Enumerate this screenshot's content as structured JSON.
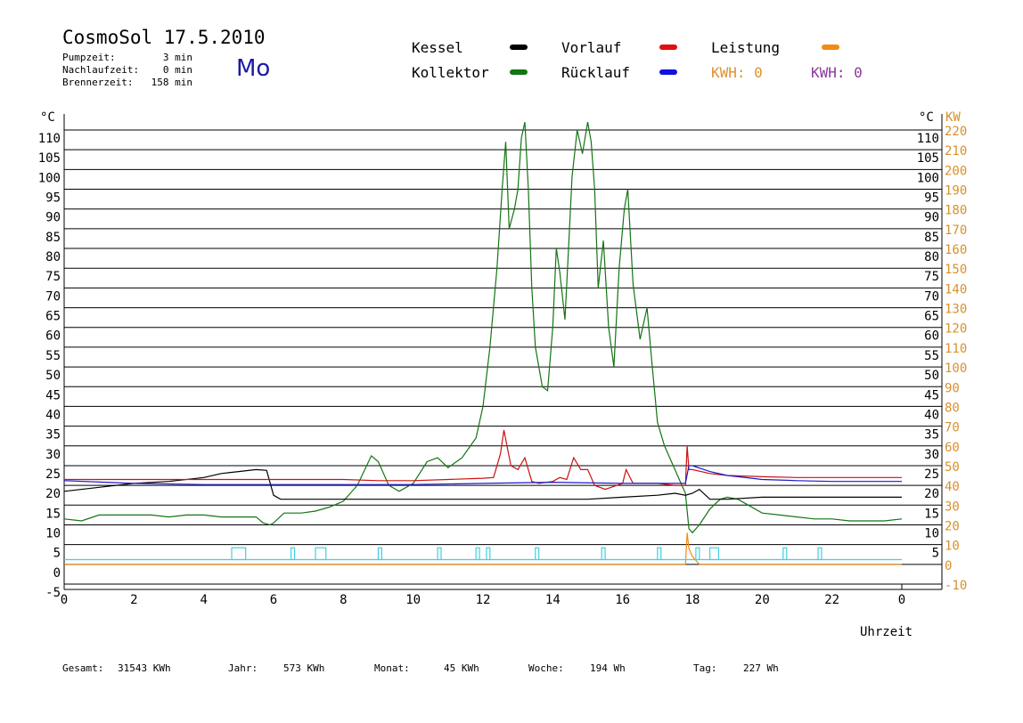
{
  "header": {
    "title": "CosmoSol 17.5.2010",
    "pumpzeit_label": "Pumpzeit:",
    "pumpzeit_value": "3 min",
    "nachlaufzeit_label": "Nachlaufzeit:",
    "nachlaufzeit_value": "0 min",
    "brennerzeit_label": "Brennerzeit:",
    "brennerzeit_value": "158 min",
    "day": "Mo"
  },
  "legend": {
    "kessel": "Kessel",
    "kollektor": "Kollektor",
    "vorlauf": "Vorlauf",
    "ruecklauf": "Rücklauf",
    "leistung": "Leistung",
    "kwh1": "KWH: 0",
    "kwh2": "KWH: 0"
  },
  "colors": {
    "kessel": "#000000",
    "kollektor": "#137513",
    "vorlauf": "#cc1111",
    "ruecklauf": "#1a1acc",
    "leistung": "#f08c14",
    "kwh1": "#e0922e",
    "kwh2": "#8a3a9a",
    "pump": "#40d0e0",
    "right_axis": "#d8902c"
  },
  "axes": {
    "left_unit": "°C",
    "right_unit": "°C",
    "right_unit2": "KW",
    "xlabel": "Uhrzeit"
  },
  "footer": {
    "gesamt_label": "Gesamt:",
    "gesamt_value": "31543 KWh",
    "jahr_label": "Jahr:",
    "jahr_value": "573 KWh",
    "monat_label": "Monat:",
    "monat_value": "45 KWh",
    "woche_label": "Woche:",
    "woche_value": "194 Wh",
    "tag_label": "Tag:",
    "tag_value": "227 Wh"
  },
  "chart_data": {
    "type": "line",
    "title": "CosmoSol 17.5.2010",
    "xlabel": "Uhrzeit",
    "ylabel": "°C",
    "xlim": [
      0,
      24
    ],
    "ylim": [
      -5,
      110
    ],
    "y2lim": [
      -10,
      220
    ],
    "x_ticks": [
      "0",
      "2",
      "4",
      "6",
      "8",
      "10",
      "12",
      "14",
      "16",
      "18",
      "20",
      "22",
      "0"
    ],
    "y_ticks_left": [
      110,
      105,
      100,
      95,
      90,
      85,
      80,
      75,
      70,
      65,
      60,
      55,
      50,
      45,
      40,
      35,
      30,
      25,
      20,
      15,
      10,
      5,
      0,
      -5
    ],
    "y_ticks_right_temp": [
      110,
      105,
      100,
      95,
      90,
      85,
      80,
      75,
      70,
      65,
      60,
      55,
      50,
      45,
      40,
      35,
      30,
      25,
      20,
      15,
      10,
      5
    ],
    "y_ticks_right_kw": [
      220,
      210,
      200,
      190,
      180,
      170,
      160,
      150,
      140,
      130,
      120,
      110,
      100,
      90,
      80,
      70,
      60,
      50,
      40,
      30,
      20,
      10,
      0,
      -10
    ],
    "grid": true,
    "series": [
      {
        "name": "Kollektor",
        "x": [
          0,
          0.5,
          1,
          1.5,
          2,
          2.5,
          3,
          3.5,
          4,
          4.5,
          5,
          5.5,
          5.7,
          5.9,
          6.0,
          6.3,
          6.8,
          7.2,
          7.6,
          8.0,
          8.4,
          8.8,
          9.0,
          9.3,
          9.6,
          10.0,
          10.4,
          10.7,
          11.0,
          11.4,
          11.8,
          12.0,
          12.2,
          12.4,
          12.55,
          12.65,
          12.75,
          12.9,
          13.0,
          13.1,
          13.2,
          13.3,
          13.4,
          13.5,
          13.7,
          13.85,
          14.0,
          14.1,
          14.2,
          14.35,
          14.45,
          14.55,
          14.7,
          14.85,
          15.0,
          15.1,
          15.2,
          15.3,
          15.45,
          15.6,
          15.75,
          15.9,
          16.05,
          16.15,
          16.3,
          16.5,
          16.7,
          16.85,
          17.0,
          17.2,
          17.5,
          17.7,
          17.8,
          17.9,
          18.0,
          18.2,
          18.5,
          18.8,
          19.0,
          19.3,
          19.6,
          20.0,
          20.5,
          21.0,
          21.5,
          22.0,
          22.5,
          23.0,
          23.5,
          24.0
        ],
        "y": [
          11.5,
          11,
          12.5,
          12.5,
          12.5,
          12.5,
          12,
          12.5,
          12.5,
          12,
          12,
          12,
          10.5,
          10,
          10.5,
          13,
          13,
          13.5,
          14.5,
          16,
          20,
          27.5,
          26,
          20,
          18.5,
          20.5,
          26,
          27,
          24.5,
          27,
          32,
          40,
          55,
          75,
          95,
          107,
          85,
          90,
          95,
          108,
          112,
          95,
          70,
          55,
          45,
          44,
          60,
          80,
          74,
          62,
          80,
          98,
          110,
          104,
          112,
          107,
          95,
          70,
          82,
          60,
          50,
          75,
          90,
          95,
          71,
          57,
          65,
          50,
          36,
          30,
          24,
          20,
          18,
          9,
          8,
          10,
          14,
          16.5,
          17,
          16.5,
          15,
          13,
          12.5,
          12,
          11.5,
          11.5,
          11,
          11,
          11,
          11.5
        ]
      },
      {
        "name": "Kessel",
        "x": [
          0,
          1,
          2,
          3,
          4,
          4.5,
          5,
          5.5,
          5.8,
          6.0,
          6.2,
          7,
          8,
          9,
          10,
          11,
          12,
          13,
          14,
          15,
          16,
          17,
          17.5,
          17.8,
          18.0,
          18.2,
          18.5,
          19,
          20,
          21,
          22,
          23,
          24
        ],
        "y": [
          18.5,
          19.5,
          20.5,
          21,
          22,
          23,
          23.5,
          24,
          23.8,
          17.5,
          16.5,
          16.5,
          16.5,
          16.5,
          16.5,
          16.5,
          16.5,
          16.5,
          16.5,
          16.5,
          17,
          17.5,
          18,
          17.5,
          18,
          19,
          16.5,
          16.5,
          17,
          17,
          17,
          17,
          17
        ]
      },
      {
        "name": "Vorlauf",
        "x": [
          0,
          2,
          4,
          6,
          8,
          9,
          10,
          11,
          12,
          12.3,
          12.5,
          12.6,
          12.8,
          13.0,
          13.2,
          13.4,
          13.6,
          14.0,
          14.2,
          14.4,
          14.6,
          14.8,
          15.0,
          15.2,
          15.5,
          16.0,
          16.1,
          16.3,
          16.6,
          17.0,
          17.5,
          17.8,
          17.85,
          17.9,
          18.0,
          18.5,
          19,
          20,
          21,
          22,
          24
        ],
        "y": [
          21.5,
          21.5,
          21.5,
          21.5,
          21.5,
          21.2,
          21.2,
          21.5,
          21.8,
          22,
          28,
          34,
          25,
          24,
          27,
          21,
          20.5,
          21,
          22,
          21.5,
          27,
          24,
          24,
          20,
          19,
          20.5,
          24,
          20.5,
          20.5,
          20.5,
          20,
          20,
          30,
          24,
          24,
          23,
          22.5,
          22.2,
          22,
          22,
          22
        ]
      },
      {
        "name": "Rücklauf",
        "x": [
          0,
          2,
          4,
          6,
          8,
          10,
          12,
          14,
          16,
          17,
          17.8,
          17.9,
          18.0,
          18.5,
          19,
          20,
          21,
          22,
          23,
          24
        ],
        "y": [
          21.2,
          20.5,
          20.2,
          20.2,
          20.2,
          20.2,
          20.5,
          20.8,
          20.5,
          20.5,
          20.5,
          25,
          25,
          23.5,
          22.5,
          21.5,
          21.2,
          21,
          21,
          21
        ]
      },
      {
        "name": "Leistung",
        "x": [
          0,
          17.7,
          17.8,
          17.85,
          17.9,
          18.0,
          18.2,
          24
        ],
        "y": [
          0,
          0,
          0,
          8,
          4,
          2,
          0,
          0
        ]
      }
    ],
    "pump_pulses": [
      {
        "start": 4.8,
        "end": 5.2,
        "height": 3
      },
      {
        "start": 6.5,
        "end": 6.6,
        "height": 3
      },
      {
        "start": 7.2,
        "end": 7.5,
        "height": 3
      },
      {
        "start": 9.0,
        "end": 9.1,
        "height": 3
      },
      {
        "start": 10.7,
        "end": 10.8,
        "height": 3
      },
      {
        "start": 11.8,
        "end": 11.9,
        "height": 3
      },
      {
        "start": 12.1,
        "end": 12.2,
        "height": 3
      },
      {
        "start": 13.5,
        "end": 13.6,
        "height": 3
      },
      {
        "start": 15.4,
        "end": 15.5,
        "height": 3
      },
      {
        "start": 17.0,
        "end": 17.1,
        "height": 3
      },
      {
        "start": 18.1,
        "end": 18.2,
        "height": 3
      },
      {
        "start": 18.5,
        "end": 18.75,
        "height": 3
      },
      {
        "start": 20.6,
        "end": 20.7,
        "height": 3
      },
      {
        "start": 21.6,
        "end": 21.7,
        "height": 3
      }
    ]
  }
}
